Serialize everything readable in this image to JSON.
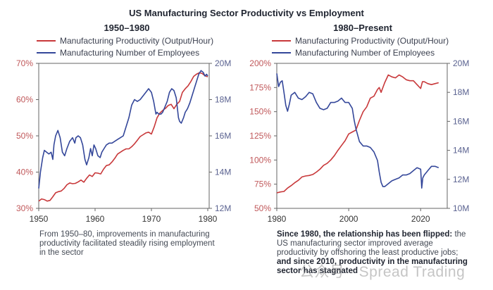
{
  "title": "US Manufacturing Sector Productivity vs Employment",
  "colors": {
    "productivity": "#c8383a",
    "employees": "#34479a",
    "left_axis_text": "#c0585a",
    "right_axis_text": "#5a6290",
    "axis": "#666666"
  },
  "legend": {
    "productivity": "Manufacturing Productivity (Output/Hour)",
    "employees": "Manufacturing Number of Employees"
  },
  "captions": {
    "left": "From 1950–80, improvements in manufacturing productivity facilitated steadily rising employment in the sector",
    "right_bold_1": "Since 1980, the relationship has been flipped:",
    "right_normal": "the US manufacturing sector improved average productivity by offshoring the least productive jobs;",
    "right_bold_2": "and since 2010, productivity in the manufacturing sector has stagnated"
  },
  "watermark": "公众号 · Spread Trading",
  "chart_data": [
    {
      "type": "line",
      "title": "1950–1980",
      "xlabel": "",
      "ylabel": "",
      "xlim": [
        1950,
        1980
      ],
      "x_ticks": [
        "1950",
        "1960",
        "1970",
        "1980"
      ],
      "y_left": {
        "lim": [
          30,
          70
        ],
        "ticks": [
          "30%",
          "40%",
          "50%",
          "60%",
          "70%"
        ]
      },
      "y_right": {
        "lim": [
          12,
          20
        ],
        "ticks": [
          "12M",
          "14M",
          "16M",
          "18M",
          "20M"
        ]
      },
      "legend_position": "top-left",
      "series": [
        {
          "name": "Manufacturing Productivity (Output/Hour)",
          "axis": "left",
          "x": [
            1950,
            1950.5,
            1951,
            1951.5,
            1952,
            1952.5,
            1953,
            1953.5,
            1954,
            1954.5,
            1955,
            1955.5,
            1956,
            1956.5,
            1957,
            1957.5,
            1958,
            1958.5,
            1959,
            1959.5,
            1960,
            1960.5,
            1961,
            1961.5,
            1962,
            1962.5,
            1963,
            1963.5,
            1964,
            1964.5,
            1965,
            1965.5,
            1966,
            1966.5,
            1967,
            1967.5,
            1968,
            1968.5,
            1969,
            1969.5,
            1970,
            1970.5,
            1971,
            1971.5,
            1972,
            1972.5,
            1973,
            1973.5,
            1974,
            1974.5,
            1975,
            1975.5,
            1976,
            1976.5,
            1977,
            1977.5,
            1978,
            1978.5,
            1979,
            1979.5,
            1980
          ],
          "y": [
            32,
            32.6,
            32.4,
            32,
            32.2,
            33.2,
            34.3,
            34.6,
            34.8,
            35.5,
            36.5,
            37,
            36.8,
            36.9,
            37.3,
            37.8,
            37.2,
            38.3,
            39.2,
            38.8,
            39.8,
            39.7,
            39.5,
            40.8,
            41.8,
            42,
            42.8,
            43.8,
            45,
            45.5,
            46,
            46.4,
            46.4,
            47,
            47.8,
            48.8,
            49.8,
            50.3,
            50.8,
            51,
            50.5,
            52.5,
            55,
            56.3,
            57,
            57.6,
            58.4,
            58.7,
            57.5,
            58.7,
            59.5,
            62,
            63,
            63.8,
            65,
            66.4,
            67,
            67.4,
            67.2,
            66.6,
            66.3
          ]
        },
        {
          "name": "Manufacturing Number of Employees",
          "axis": "right",
          "x": [
            1950,
            1950.3,
            1950.7,
            1951,
            1951.4,
            1951.8,
            1952.2,
            1952.5,
            1952.7,
            1953,
            1953.4,
            1953.8,
            1954.2,
            1954.6,
            1955,
            1955.5,
            1956,
            1956.4,
            1956.6,
            1957,
            1957.4,
            1957.8,
            1958.2,
            1958.5,
            1958.9,
            1959.2,
            1959.5,
            1959.8,
            1960.1,
            1960.5,
            1960.9,
            1961.2,
            1961.6,
            1962,
            1962.5,
            1963,
            1963.5,
            1964,
            1964.5,
            1965,
            1965.5,
            1966,
            1966.5,
            1967,
            1967.5,
            1968,
            1968.5,
            1969,
            1969.5,
            1970,
            1970.4,
            1970.8,
            1971,
            1971.3,
            1971.7,
            1972,
            1972.4,
            1972.8,
            1973.2,
            1973.6,
            1974,
            1974.4,
            1974.8,
            1975,
            1975.3,
            1975.7,
            1976,
            1976.4,
            1976.8,
            1977.2,
            1977.6,
            1978,
            1978.4,
            1978.8,
            1979.2,
            1979.5,
            1979.8,
            1980
          ],
          "y": [
            13.1,
            14,
            14.8,
            15.2,
            15.1,
            15.0,
            15.1,
            14.7,
            15.5,
            16.0,
            16.3,
            15.9,
            15.1,
            14.9,
            15.3,
            15.7,
            15.9,
            15.6,
            15.9,
            16.0,
            15.9,
            15.5,
            14.7,
            14.4,
            14.8,
            15.3,
            14.9,
            15.5,
            15.3,
            14.9,
            14.8,
            15.1,
            15.3,
            15.5,
            15.6,
            15.6,
            15.7,
            15.8,
            15.9,
            16.0,
            16.5,
            17.0,
            17.7,
            18.0,
            17.9,
            18.0,
            18.2,
            18.4,
            18.6,
            18.4,
            17.9,
            17.2,
            17.3,
            17.2,
            17.2,
            17.3,
            17.6,
            17.9,
            18.4,
            18.6,
            18.5,
            18.1,
            17.0,
            16.8,
            16.7,
            17.0,
            17.3,
            17.5,
            17.8,
            18.2,
            18.6,
            19.0,
            19.4,
            19.6,
            19.5,
            19.3,
            19.4,
            19.3
          ]
        }
      ]
    },
    {
      "type": "line",
      "title": "1980–Present",
      "xlabel": "",
      "ylabel": "",
      "xlim": [
        1980,
        2027
      ],
      "x_ticks": [
        "1980",
        "2000",
        "2020"
      ],
      "y_left": {
        "lim": [
          50,
          200
        ],
        "ticks": [
          "50%",
          "75%",
          "100%",
          "125%",
          "150%",
          "175%",
          "200%"
        ]
      },
      "y_right": {
        "lim": [
          10,
          20
        ],
        "ticks": [
          "10M",
          "12M",
          "14M",
          "16M",
          "18M",
          "20M"
        ]
      },
      "legend_position": "top-left",
      "series": [
        {
          "name": "Manufacturing Productivity (Output/Hour)",
          "axis": "left",
          "x": [
            1980,
            1981,
            1982,
            1983,
            1984,
            1985,
            1986,
            1987,
            1988,
            1989,
            1990,
            1991,
            1992,
            1993,
            1994,
            1995,
            1996,
            1997,
            1998,
            1999,
            2000,
            2001,
            2002,
            2003,
            2004,
            2005,
            2006,
            2007,
            2008,
            2008.5,
            2009,
            2010,
            2011,
            2012,
            2013,
            2014,
            2015,
            2016,
            2017,
            2018,
            2019,
            2020,
            2020.5,
            2021,
            2022,
            2023,
            2024,
            2025
          ],
          "y": [
            66,
            67,
            67.5,
            71,
            73.5,
            76.5,
            79,
            82.5,
            83.5,
            84,
            85,
            87.5,
            90.5,
            94.5,
            96.5,
            100,
            104.5,
            110,
            115,
            120,
            127,
            129,
            131,
            141,
            150,
            155,
            164,
            166,
            173,
            175,
            170,
            180,
            188,
            186,
            185,
            188,
            186,
            183,
            182,
            182,
            178,
            174,
            181,
            181,
            179,
            178,
            179,
            180
          ]
        },
        {
          "name": "Manufacturing Number of Employees",
          "axis": "right",
          "x": [
            1980,
            1980.5,
            1981,
            1981.5,
            1982,
            1982.5,
            1983,
            1983.5,
            1984,
            1985,
            1986,
            1987,
            1988,
            1989,
            1990,
            1991,
            1992,
            1993,
            1994,
            1995,
            1996,
            1997,
            1998,
            1999,
            2000,
            2001,
            2001.5,
            2002,
            2003,
            2004,
            2005,
            2006,
            2007,
            2008,
            2008.5,
            2009,
            2009.5,
            2010,
            2011,
            2012,
            2013,
            2014,
            2015,
            2016,
            2017,
            2018,
            2019,
            2020,
            2020.3,
            2020.6,
            2021,
            2022,
            2023,
            2024,
            2025
          ],
          "y": [
            19.3,
            18.4,
            18.7,
            18.8,
            18.0,
            17.1,
            16.7,
            17.2,
            17.8,
            18.0,
            17.6,
            17.5,
            17.7,
            18.0,
            17.9,
            17.3,
            16.9,
            16.8,
            16.9,
            17.3,
            17.3,
            17.4,
            17.6,
            17.3,
            17.3,
            16.9,
            16.1,
            15.5,
            14.6,
            14.3,
            14.3,
            14.2,
            13.9,
            13.3,
            12.5,
            11.8,
            11.5,
            11.5,
            11.7,
            11.9,
            12.0,
            12.1,
            12.3,
            12.3,
            12.4,
            12.6,
            12.8,
            12.7,
            11.4,
            12.1,
            12.3,
            12.6,
            12.9,
            12.9,
            12.8
          ]
        }
      ]
    }
  ]
}
